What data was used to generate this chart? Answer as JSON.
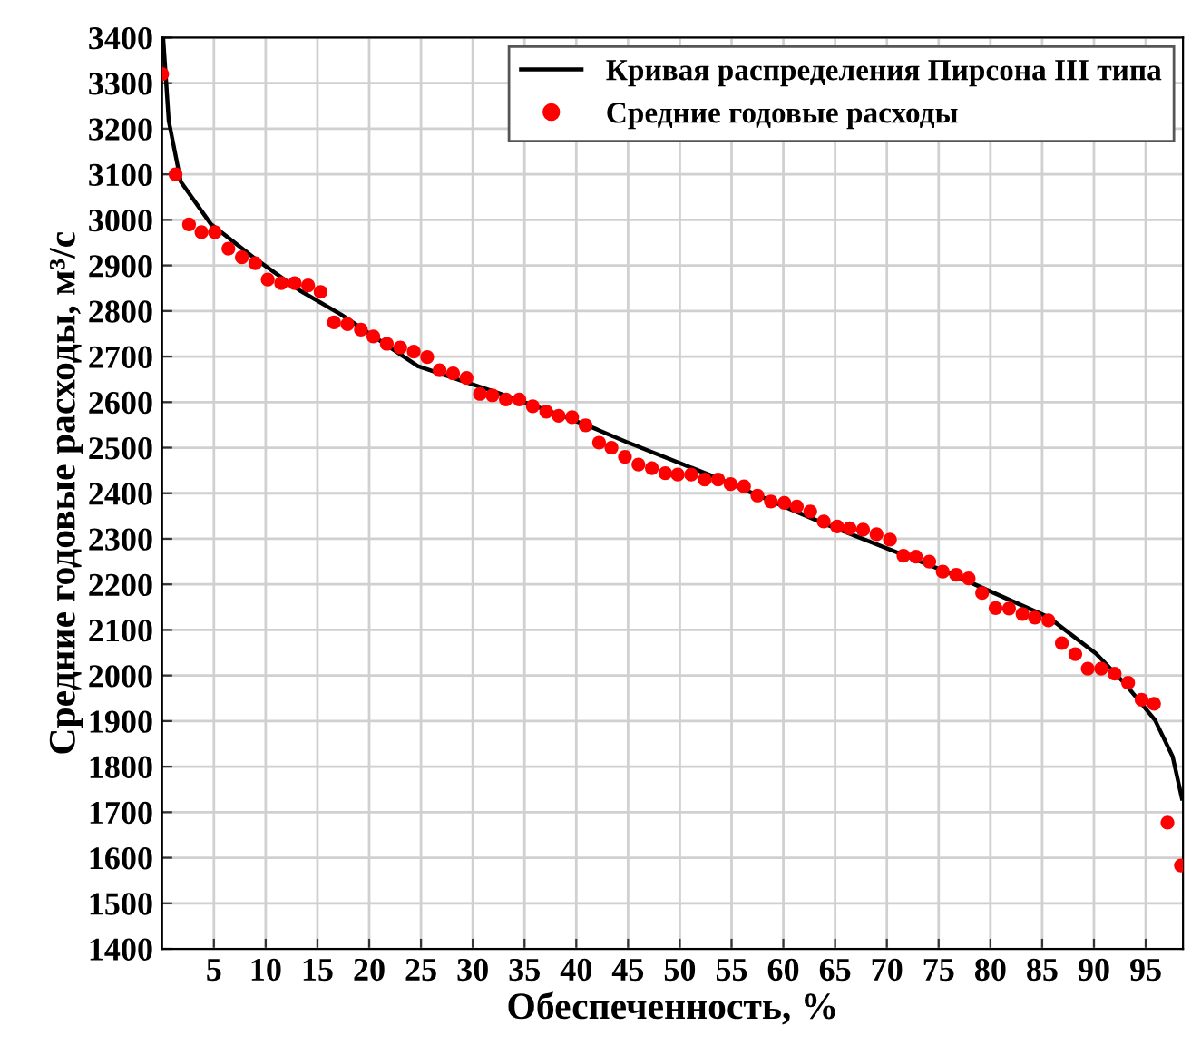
{
  "chart_data": {
    "type": "scatter",
    "xlabel": "Обеспеченность, %",
    "ylabel": "Средние годовые расходы, м³/с",
    "xlim": [
      0,
      98.6
    ],
    "ylim": [
      1400,
      3400
    ],
    "xticks": [
      5,
      10,
      15,
      20,
      25,
      30,
      35,
      40,
      45,
      50,
      55,
      60,
      65,
      70,
      75,
      80,
      85,
      90,
      95
    ],
    "yticks": [
      1400,
      1500,
      1600,
      1700,
      1800,
      1900,
      2000,
      2100,
      2200,
      2300,
      2400,
      2500,
      2600,
      2700,
      2800,
      2900,
      3000,
      3100,
      3200,
      3300,
      3400
    ],
    "grid": true,
    "legend": "top right",
    "series": [
      {
        "name": "Кривая распределения Пирсона III типа",
        "type": "line",
        "color": "#000000",
        "marker": "none",
        "line_style": "solid",
        "x": [
          0.1,
          0.64,
          1.8,
          4.7,
          8.8,
          13.3,
          17.3,
          24.7,
          33.4,
          39.1,
          42.0,
          44.8,
          52.9,
          64.3,
          75.8,
          85.6,
          90.2,
          93.0,
          95.9,
          97.6,
          98.5
        ],
        "values": [
          3400,
          3217,
          3084,
          2991,
          2918,
          2845,
          2792,
          2679,
          2613,
          2566,
          2540,
          2513,
          2440,
          2330,
          2227,
          2128,
          2048,
          1982,
          1902,
          1822,
          1730
        ]
      },
      {
        "name": "Средние годовые расходы",
        "color": "#ff0000",
        "marker": "circle",
        "x": [
          0,
          1.3,
          2.6,
          3.8,
          5.1,
          6.4,
          7.7,
          9.0,
          10.2,
          11.5,
          12.8,
          14.1,
          15.3,
          16.6,
          17.9,
          19.2,
          20.4,
          21.7,
          23.0,
          24.3,
          25.6,
          26.8,
          28.1,
          29.4,
          30.7,
          31.9,
          33.2,
          34.5,
          35.8,
          37.1,
          38.3,
          39.6,
          40.9,
          42.2,
          43.4,
          44.7,
          46.0,
          47.3,
          48.6,
          49.8,
          51.1,
          52.4,
          53.7,
          54.9,
          56.2,
          57.5,
          58.8,
          60.1,
          61.3,
          62.6,
          63.9,
          65.2,
          66.4,
          67.7,
          69.0,
          70.3,
          71.6,
          72.8,
          74.1,
          75.4,
          76.7,
          77.9,
          79.2,
          80.5,
          81.8,
          83.1,
          84.3,
          85.6,
          86.9,
          88.2,
          89.4,
          90.7,
          92.0,
          93.3,
          94.6,
          95.8,
          97.1,
          98.4
        ],
        "values": [
          3320,
          3100,
          2990,
          2973,
          2973,
          2937,
          2918,
          2905,
          2869,
          2861,
          2861,
          2856,
          2842,
          2775,
          2771,
          2759,
          2744,
          2728,
          2720,
          2711,
          2699,
          2670,
          2663,
          2653,
          2618,
          2615,
          2606,
          2606,
          2591,
          2579,
          2570,
          2567,
          2549,
          2511,
          2500,
          2480,
          2463,
          2455,
          2444,
          2441,
          2441,
          2430,
          2430,
          2420,
          2415,
          2395,
          2382,
          2379,
          2371,
          2360,
          2338,
          2327,
          2323,
          2320,
          2310,
          2298,
          2263,
          2261,
          2250,
          2228,
          2221,
          2213,
          2181,
          2148,
          2147,
          2135,
          2127,
          2121,
          2071,
          2047,
          2015,
          2015,
          2004,
          1984,
          1947,
          1938,
          1677,
          1583
        ]
      }
    ]
  }
}
